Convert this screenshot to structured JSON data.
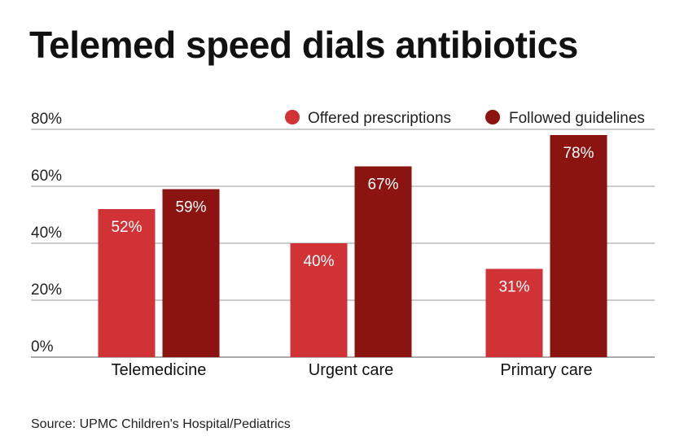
{
  "source": "Source: UPMC Children's Hospital/Pediatrics",
  "colors": {
    "offered": "#d13236",
    "followed": "#8b1411",
    "grid": "#9a9a9a",
    "axis": "#555555"
  },
  "chart_data": {
    "type": "bar",
    "title": "Telemed speed dials antibiotics",
    "xlabel": "",
    "ylabel": "",
    "categories": [
      "Telemedicine",
      "Urgent care",
      "Primary care"
    ],
    "series": [
      {
        "name": "Offered prescriptions",
        "values": [
          52,
          40,
          31
        ],
        "labels": [
          "52%",
          "40%",
          "31%"
        ]
      },
      {
        "name": "Followed guidelines",
        "values": [
          59,
          67,
          78
        ],
        "labels": [
          "59%",
          "67%",
          "78%"
        ]
      }
    ],
    "ylim": [
      0,
      80
    ],
    "yticks": [
      0,
      20,
      40,
      60,
      80
    ],
    "ytick_labels": [
      "0%",
      "20%",
      "40%",
      "60%",
      "80%"
    ],
    "grid": true,
    "legend_position": "top-right"
  }
}
